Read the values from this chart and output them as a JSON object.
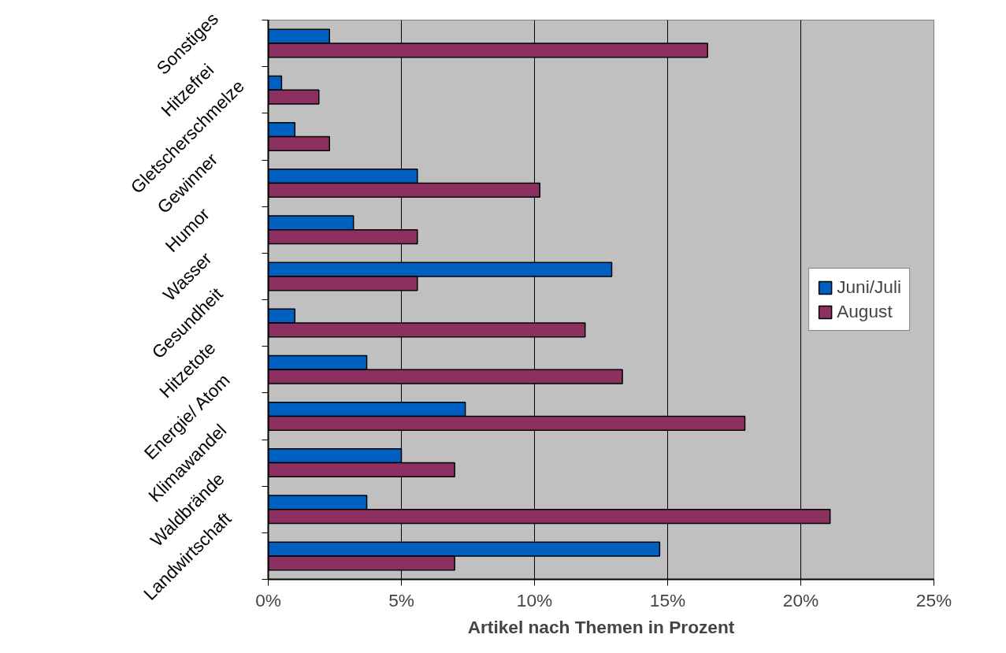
{
  "chart_data": {
    "type": "bar",
    "orientation": "horizontal",
    "xlabel": "Artikel nach Themen in Prozent",
    "categories": [
      "Sonstiges",
      "Hitzefrei",
      "Gletscherschmelze",
      "Gewinner",
      "Humor",
      "Wasser",
      "Gesundheit",
      "Hitzetote",
      "Energie/ Atom",
      "Klimawandel",
      "Waldbrände",
      "Landwirtschaft"
    ],
    "series": [
      {
        "name": "Juni/Juli",
        "color": "#0060c0",
        "values": [
          2.3,
          0.5,
          1.0,
          5.6,
          3.2,
          12.9,
          1.0,
          3.7,
          7.4,
          5.0,
          3.7,
          14.7
        ]
      },
      {
        "name": "August",
        "color": "#8b3060",
        "values": [
          16.5,
          1.9,
          2.3,
          10.2,
          5.6,
          5.6,
          11.9,
          13.3,
          17.9,
          7.0,
          21.1,
          7.0
        ]
      }
    ],
    "xlim": [
      0,
      25
    ],
    "xticks": [
      {
        "value": 0,
        "label": "0%"
      },
      {
        "value": 5,
        "label": "5%"
      },
      {
        "value": 10,
        "label": "10%"
      },
      {
        "value": 15,
        "label": "15%"
      },
      {
        "value": 20,
        "label": "20%"
      },
      {
        "value": 25,
        "label": "25%"
      }
    ],
    "grid": "x",
    "legend": "right"
  }
}
